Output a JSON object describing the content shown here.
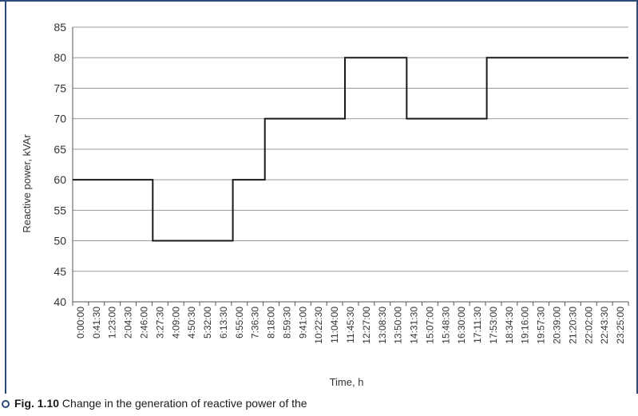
{
  "chart_data": {
    "type": "line",
    "step": true,
    "title": "",
    "xlabel": "Time, h",
    "ylabel": "Reactive power, kVAr",
    "ylim": [
      40,
      85
    ],
    "y_ticks": [
      40,
      45,
      50,
      55,
      60,
      65,
      70,
      75,
      80,
      85
    ],
    "x_tick_labels": [
      "0:00:00",
      "0:41:30",
      "1:23:00",
      "2:04:30",
      "2:46:00",
      "3:27:30",
      "4:09:00",
      "4:50:30",
      "5:32:00",
      "6:13:30",
      "6:55:00",
      "7:36:30",
      "8:18:00",
      "8:59:30",
      "9:41:00",
      "10:22:30",
      "11:04:00",
      "11:45:30",
      "12:27:00",
      "13:08:30",
      "13:50:00",
      "14:31:30",
      "15:07:00",
      "15:48:30",
      "16:30:00",
      "17:11:30",
      "17:53:00",
      "18:34:30",
      "19:16:00",
      "19:57:30",
      "20:39:00",
      "21:20:30",
      "22:02:00",
      "22:43:30",
      "23:25:00"
    ],
    "x_end": "24:00:00",
    "grid": {
      "horizontal": true,
      "vertical": false
    },
    "series": [
      {
        "color": "#1a1a1a",
        "points": [
          {
            "x": "0:00:00",
            "y": 60
          },
          {
            "x": "3:27:30",
            "y": 50
          },
          {
            "x": "6:55:00",
            "y": 60
          },
          {
            "x": "8:18:00",
            "y": 70
          },
          {
            "x": "11:45:30",
            "y": 80
          },
          {
            "x": "14:25:30",
            "y": 70
          },
          {
            "x": "17:53:00",
            "y": 80
          },
          {
            "x": "24:00:00",
            "y": 80
          }
        ]
      }
    ]
  },
  "caption": {
    "label": "Fig. 1.10",
    "text": " Change in the generation of reactive power of the",
    "marker_color": "#2b4a7a"
  },
  "frame_color": "#2b4a7a"
}
